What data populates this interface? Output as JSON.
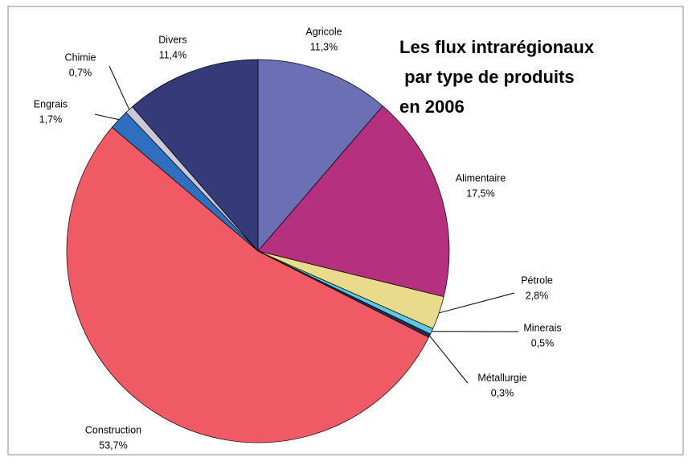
{
  "chart_data": {
    "type": "pie",
    "title": [
      "Les flux intrarégionaux",
      " par type de produits",
      "en 2006"
    ],
    "categories": [
      "Agricole",
      "Alimentaire",
      "Pétrole",
      "Minerais",
      "Métallurgie",
      "Construction",
      "Engrais",
      "Chimie",
      "Divers"
    ],
    "values": [
      11.3,
      17.5,
      2.8,
      0.5,
      0.3,
      53.7,
      1.7,
      0.7,
      11.4
    ],
    "value_labels": [
      "11,3%",
      "17,5%",
      "2,8%",
      "0,5%",
      "0,3%",
      "53,7%",
      "1,7%",
      "0,7%",
      "11,4%"
    ],
    "colors": [
      "#6b70b5",
      "#b5307e",
      "#e8dc8c",
      "#5ec8e0",
      "#2a2a5a",
      "#ef5a65",
      "#2e6fbf",
      "#c8c8d8",
      "#353a78"
    ]
  }
}
